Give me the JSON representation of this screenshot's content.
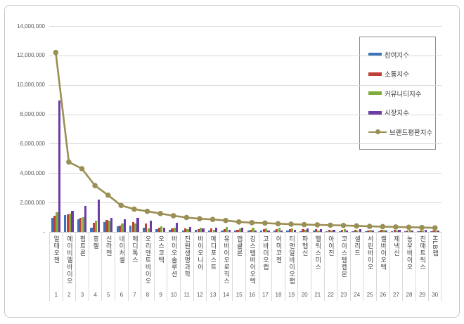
{
  "page": {
    "background": "#ffffff",
    "frame_border_color": "#c9c9c9"
  },
  "chart_data": {
    "type": "bar+line",
    "title": "",
    "legend_position": "right-top",
    "grid": true,
    "gridline_color": "#d9d9d9",
    "categories": [
      "알테오젠",
      "에이비엘바이오",
      "펩트론",
      "휴젤",
      "신라젠",
      "네이처셀",
      "메디톡스",
      "오리엔트바이오",
      "오스코텍",
      "바이오솔루션",
      "진원생명과학",
      "바이오니아",
      "메디포스트",
      "유바이오로직스",
      "앱클론",
      "강스템바이오텍",
      "고바이오랩",
      "아미코젠",
      "티앤알바이오팹",
      "파멥신",
      "헬릭스미스",
      "아이진",
      "코아스템켐온",
      "셀리드",
      "서린바이오",
      "쎌바이오텍",
      "제넥신",
      "농우바이오",
      "진매트릭스",
      "HLB랩"
    ],
    "ranks": [
      "1",
      "2",
      "3",
      "4",
      "5",
      "6",
      "7",
      "8",
      "9",
      "10",
      "11",
      "12",
      "13",
      "14",
      "15",
      "16",
      "17",
      "18",
      "19",
      "20",
      "21",
      "22",
      "23",
      "24",
      "25",
      "26",
      "27",
      "28",
      "29",
      "30"
    ],
    "y_axis": {
      "min": 0,
      "max": 14000000,
      "tick_interval": 2000000,
      "tick_labels": [
        "-",
        "2,000,000",
        "4,000,000",
        "6,000,000",
        "8,000,000",
        "10,000,000",
        "12,000,000",
        "14,000,000"
      ]
    },
    "series": [
      {
        "name": "참여지수",
        "type": "bar",
        "color": "#3d74b8",
        "values": [
          950000,
          1150000,
          850000,
          300000,
          680000,
          380000,
          420000,
          300000,
          170000,
          130000,
          100000,
          150000,
          100000,
          100000,
          80000,
          80000,
          100000,
          80000,
          80000,
          60000,
          100000,
          50000,
          50000,
          50000,
          50000,
          50000,
          50000,
          40000,
          40000,
          40000
        ]
      },
      {
        "name": "소통지수",
        "type": "bar",
        "color": "#be4039",
        "values": [
          1080000,
          1180000,
          950000,
          600000,
          830000,
          450000,
          650000,
          550000,
          300000,
          240000,
          250000,
          200000,
          250000,
          200000,
          150000,
          150000,
          200000,
          200000,
          200000,
          200000,
          200000,
          150000,
          150000,
          150000,
          100000,
          120000,
          120000,
          100000,
          100000,
          80000
        ]
      },
      {
        "name": "커뮤니티지수",
        "type": "bar",
        "color": "#7ead3e",
        "values": [
          1320000,
          1220000,
          1000000,
          750000,
          770000,
          570000,
          550000,
          250000,
          380000,
          300000,
          200000,
          300000,
          150000,
          350000,
          250000,
          300000,
          250000,
          300000,
          250000,
          150000,
          100000,
          100000,
          200000,
          100000,
          150000,
          150000,
          100000,
          120000,
          80000,
          100000
        ]
      },
      {
        "name": "시장지수",
        "type": "bar",
        "color": "#6b3da5",
        "values": [
          8950000,
          1450000,
          1780000,
          2200000,
          950000,
          850000,
          950000,
          780000,
          280000,
          630000,
          350000,
          250000,
          300000,
          150000,
          300000,
          100000,
          100000,
          100000,
          150000,
          250000,
          200000,
          150000,
          100000,
          200000,
          100000,
          80000,
          150000,
          80000,
          120000,
          80000
        ]
      },
      {
        "name": "브랜드평판지수",
        "type": "line",
        "color": "#9a8f55",
        "values": [
          12200000,
          4750000,
          4300000,
          3150000,
          2500000,
          1800000,
          1550000,
          1400000,
          1250000,
          1100000,
          980000,
          900000,
          850000,
          780000,
          680000,
          630000,
          600000,
          560000,
          530000,
          500000,
          480000,
          460000,
          440000,
          410000,
          380000,
          360000,
          340000,
          320000,
          300000,
          280000
        ]
      }
    ]
  }
}
